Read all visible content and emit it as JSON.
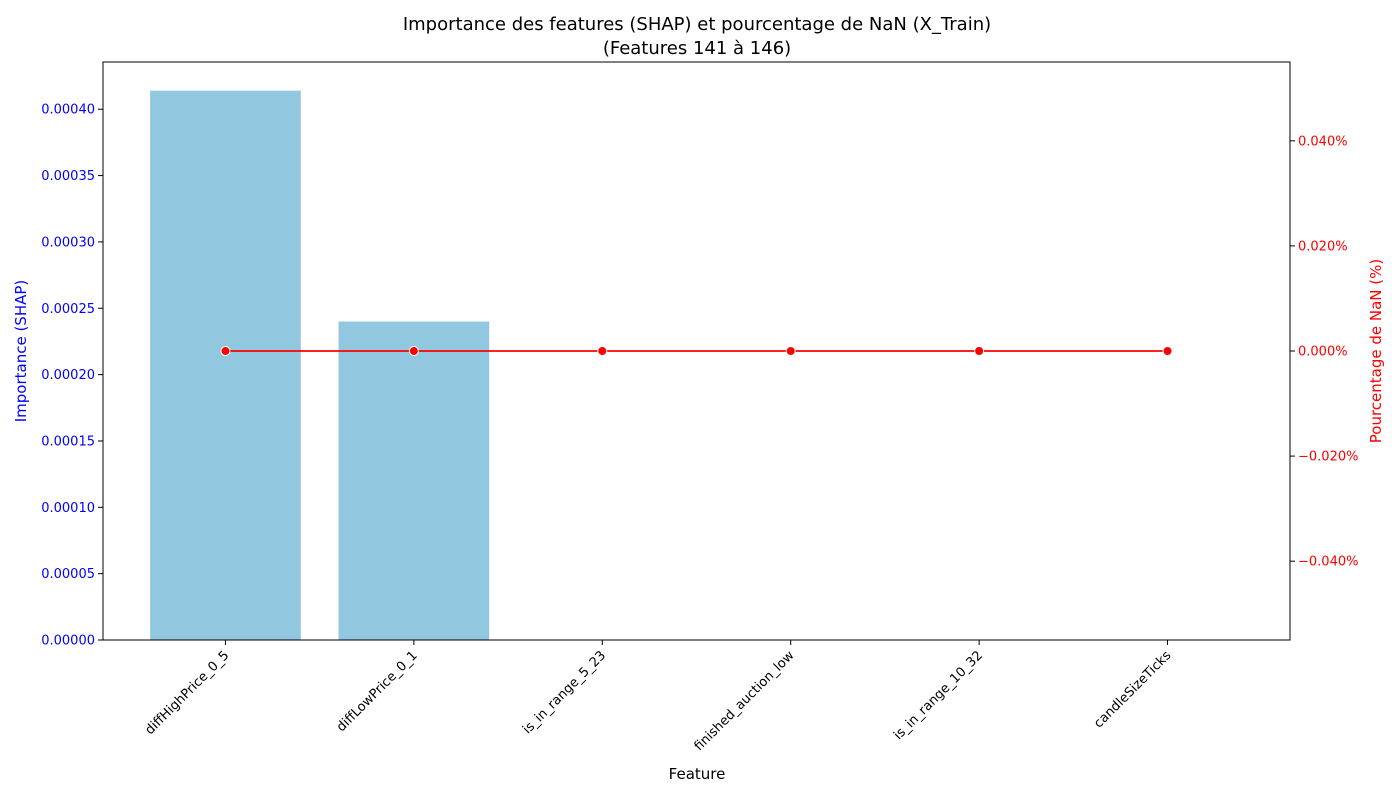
{
  "chart_data": {
    "type": "bar",
    "title_line1": "Importance des features (SHAP) et pourcentage de NaN (X_Train)",
    "title_line2": "(Features 141 à 146)",
    "xlabel": "Feature",
    "ylabel_left": "Importance (SHAP)",
    "ylabel_right": "Pourcentage de NaN (%)",
    "categories": [
      "diffHighPrice_0_5",
      "diffLowPrice_0_1",
      "is_in_range_5_23",
      "finished_auction_low",
      "is_in_range_10_32",
      "candleSizeTicks"
    ],
    "series": [
      {
        "axis": "left",
        "type": "bar",
        "values": [
          0.000414,
          0.00024,
          0,
          0,
          0,
          0
        ],
        "color": "#92c8df"
      },
      {
        "axis": "right",
        "type": "line",
        "values": [
          0,
          0,
          0,
          0,
          0,
          0
        ],
        "color": "#ff0000"
      }
    ],
    "ylim_left": [
      0,
      0.0004356
    ],
    "ylim_right": [
      -0.055,
      0.055
    ],
    "yticks_left": [
      "0.00000",
      "0.00005",
      "0.00010",
      "0.00015",
      "0.00020",
      "0.00025",
      "0.00030",
      "0.00035",
      "0.00040"
    ],
    "yticks_right": [
      "−0.040%",
      "−0.020%",
      "0.000%",
      "0.020%",
      "0.040%"
    ],
    "ytick_values_right": [
      -0.04,
      -0.02,
      0,
      0.02,
      0.04
    ],
    "left_axis_color": "#0000ff",
    "right_axis_color": "#ff0000",
    "grid": false
  }
}
